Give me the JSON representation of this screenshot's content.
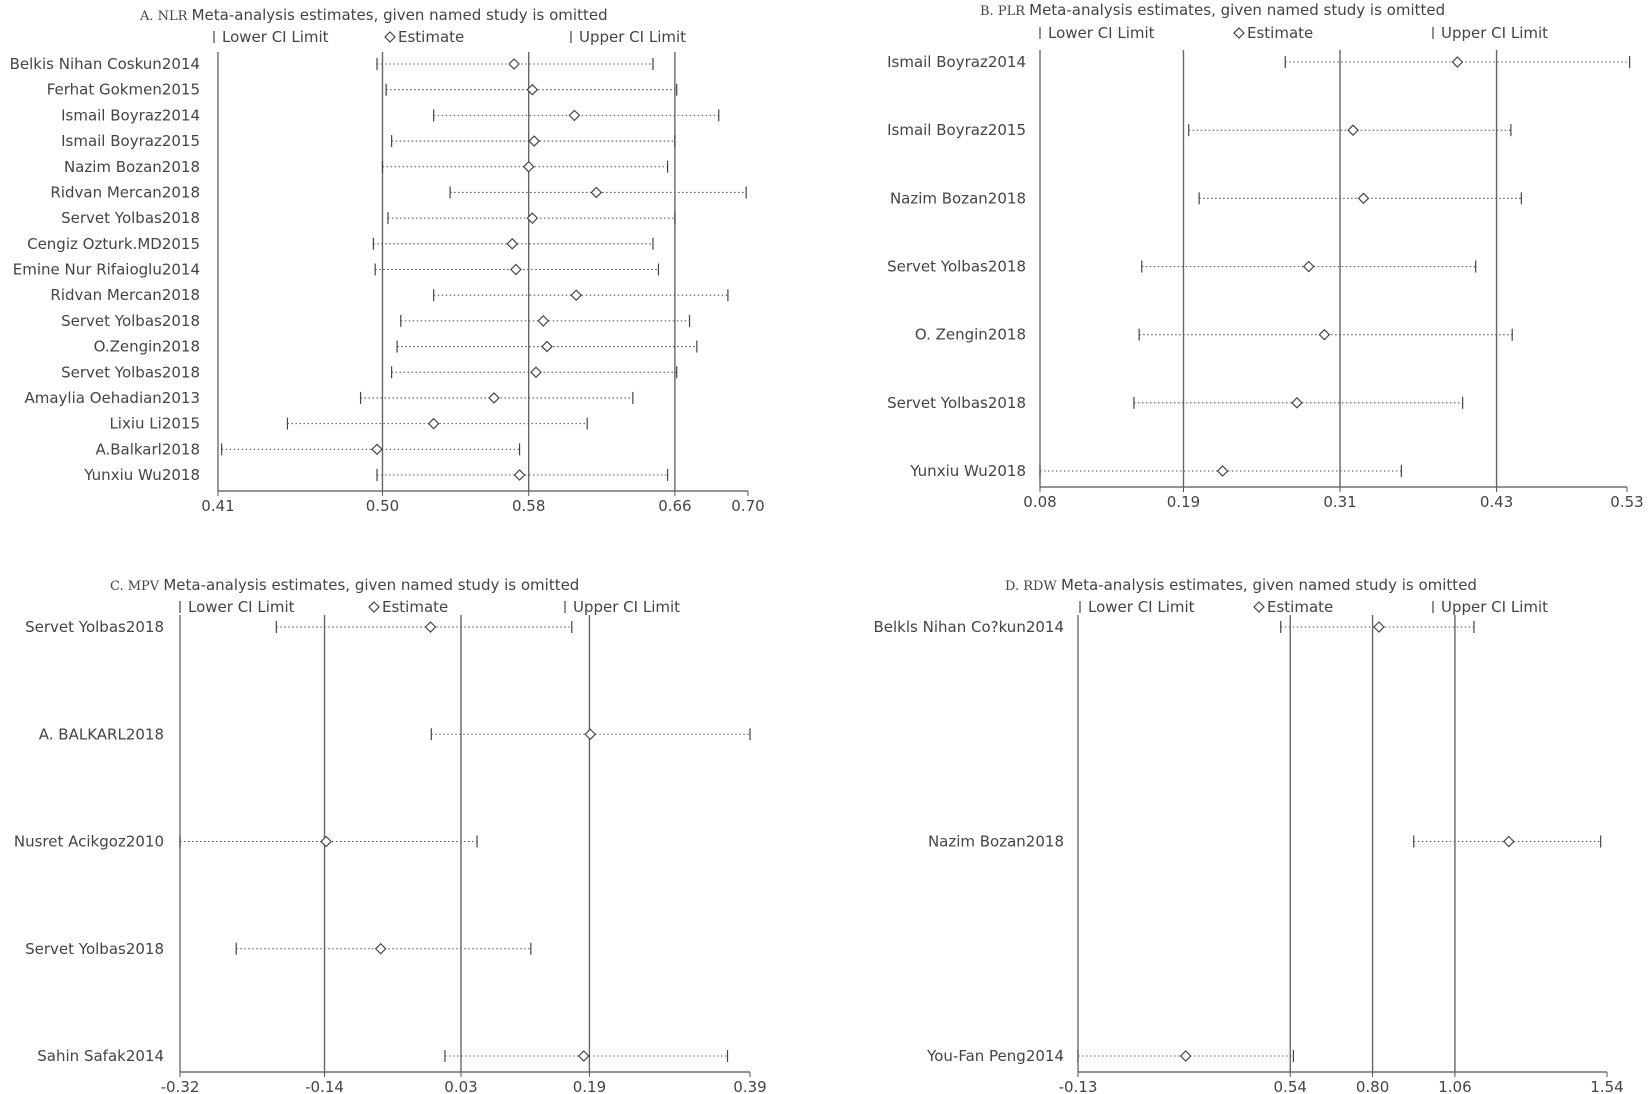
{
  "chart_data": [
    {
      "panel": "A. NLR",
      "type": "forest",
      "title": "Meta-analysis estimates, given named study is omitted",
      "legend": [
        "Lower CI Limit",
        "Estimate",
        "Upper CI Limit"
      ],
      "xlim": [
        0.41,
        0.7
      ],
      "ticks": [
        0.41,
        0.5,
        0.58,
        0.66,
        0.7
      ],
      "tick_labels": [
        "0.41",
        "0.50",
        "0.58",
        "0.66",
        "0.70"
      ],
      "ref_lines": [
        0.5,
        0.58,
        0.66
      ],
      "studies": [
        {
          "label": "Belkis Nihan Coskun2014",
          "lower": 0.497,
          "estimate": 0.572,
          "upper": 0.648
        },
        {
          "label": "Ferhat Gokmen2015",
          "lower": 0.502,
          "estimate": 0.582,
          "upper": 0.661
        },
        {
          "label": "Ismail Boyraz2014",
          "lower": 0.528,
          "estimate": 0.605,
          "upper": 0.684
        },
        {
          "label": "Ismail Boyraz2015",
          "lower": 0.505,
          "estimate": 0.583,
          "upper": 0.66
        },
        {
          "label": "Nazim Bozan2018",
          "lower": 0.5,
          "estimate": 0.58,
          "upper": 0.656
        },
        {
          "label": "Ridvan Mercan2018",
          "lower": 0.537,
          "estimate": 0.617,
          "upper": 0.699
        },
        {
          "label": "Servet Yolbas2018",
          "lower": 0.503,
          "estimate": 0.582,
          "upper": 0.66
        },
        {
          "label": "Cengiz Ozturk.MD2015",
          "lower": 0.495,
          "estimate": 0.571,
          "upper": 0.648
        },
        {
          "label": "Emine Nur Rifaioglu2014",
          "lower": 0.496,
          "estimate": 0.573,
          "upper": 0.651
        },
        {
          "label": "Ridvan Mercan2018",
          "lower": 0.528,
          "estimate": 0.606,
          "upper": 0.689
        },
        {
          "label": "Servet Yolbas2018",
          "lower": 0.51,
          "estimate": 0.588,
          "upper": 0.668
        },
        {
          "label": "O.Zengin2018",
          "lower": 0.508,
          "estimate": 0.59,
          "upper": 0.672
        },
        {
          "label": "Servet Yolbas2018",
          "lower": 0.505,
          "estimate": 0.584,
          "upper": 0.661
        },
        {
          "label": "Amaylia Oehadian2013",
          "lower": 0.488,
          "estimate": 0.561,
          "upper": 0.637
        },
        {
          "label": "Lixiu Li2015",
          "lower": 0.448,
          "estimate": 0.528,
          "upper": 0.612
        },
        {
          "label": "A.Balkarl2018",
          "lower": 0.412,
          "estimate": 0.497,
          "upper": 0.575
        },
        {
          "label": "Yunxiu Wu2018",
          "lower": 0.497,
          "estimate": 0.575,
          "upper": 0.656
        }
      ]
    },
    {
      "panel": "B. PLR",
      "type": "forest",
      "title": "Meta-analysis estimates, given named study is omitted",
      "legend": [
        "Lower CI Limit",
        "Estimate",
        "Upper CI Limit"
      ],
      "xlim": [
        0.08,
        0.53
      ],
      "ticks": [
        0.08,
        0.19,
        0.31,
        0.43,
        0.53
      ],
      "tick_labels": [
        "0.08",
        "0.19",
        "0.31",
        "0.43",
        "0.53"
      ],
      "ref_lines": [
        0.19,
        0.31,
        0.43
      ],
      "studies": [
        {
          "label": "Ismail Boyraz2014",
          "lower": 0.268,
          "estimate": 0.4,
          "upper": 0.532
        },
        {
          "label": "Ismail Boyraz2015",
          "lower": 0.194,
          "estimate": 0.32,
          "upper": 0.441
        },
        {
          "label": "Nazim Bozan2018",
          "lower": 0.202,
          "estimate": 0.328,
          "upper": 0.449
        },
        {
          "label": "Servet Yolbas2018",
          "lower": 0.158,
          "estimate": 0.286,
          "upper": 0.414
        },
        {
          "label": "O. Zengin2018",
          "lower": 0.156,
          "estimate": 0.298,
          "upper": 0.442
        },
        {
          "label": "Servet Yolbas2018",
          "lower": 0.152,
          "estimate": 0.277,
          "upper": 0.404
        },
        {
          "label": "Yunxiu Wu2018",
          "lower": 0.08,
          "estimate": 0.22,
          "upper": 0.357
        }
      ]
    },
    {
      "panel": "C. MPV",
      "type": "forest",
      "title": "Meta-analysis estimates, given named study is omitted",
      "legend": [
        "Lower CI Limit",
        "Estimate",
        "Upper CI Limit"
      ],
      "xlim": [
        -0.32,
        0.39
      ],
      "ticks": [
        -0.32,
        -0.14,
        0.03,
        0.19,
        0.39
      ],
      "tick_labels": [
        "-0.32",
        "-0.14",
        "0.03",
        "0.19",
        "0.39"
      ],
      "ref_lines": [
        -0.14,
        0.03,
        0.19
      ],
      "studies": [
        {
          "label": "Servet Yolbas2018",
          "lower": -0.2,
          "estimate": -0.008,
          "upper": 0.168
        },
        {
          "label": "A. BALKARL2018",
          "lower": -0.007,
          "estimate": 0.191,
          "upper": 0.39
        },
        {
          "label": "Nusret Acikgoz2010",
          "lower": -0.32,
          "estimate": -0.138,
          "upper": 0.05
        },
        {
          "label": "Servet Yolbas2018",
          "lower": -0.25,
          "estimate": -0.07,
          "upper": 0.117
        },
        {
          "label": "Sahin Safak2014",
          "lower": 0.01,
          "estimate": 0.183,
          "upper": 0.362
        }
      ]
    },
    {
      "panel": "D. RDW",
      "type": "forest",
      "title": "Meta-analysis estimates, given named study is omitted",
      "legend": [
        "Lower CI Limit",
        "Estimate",
        "Upper CI Limit"
      ],
      "xlim": [
        -0.13,
        1.54
      ],
      "ticks": [
        -0.13,
        0.54,
        0.8,
        1.06,
        1.54
      ],
      "tick_labels": [
        "-0.13",
        "0.54",
        "0.80",
        "1.06",
        "1.54"
      ],
      "ref_lines": [
        0.54,
        0.8,
        1.06
      ],
      "studies": [
        {
          "label": "Belkls Nihan Co?kun2014",
          "lower": 0.51,
          "estimate": 0.82,
          "upper": 1.12
        },
        {
          "label": "Nazim Bozan2018",
          "lower": 0.93,
          "estimate": 1.23,
          "upper": 1.52
        },
        {
          "label": "You-Fan Peng2014",
          "lower": -0.13,
          "estimate": 0.21,
          "upper": 0.55
        }
      ]
    }
  ]
}
